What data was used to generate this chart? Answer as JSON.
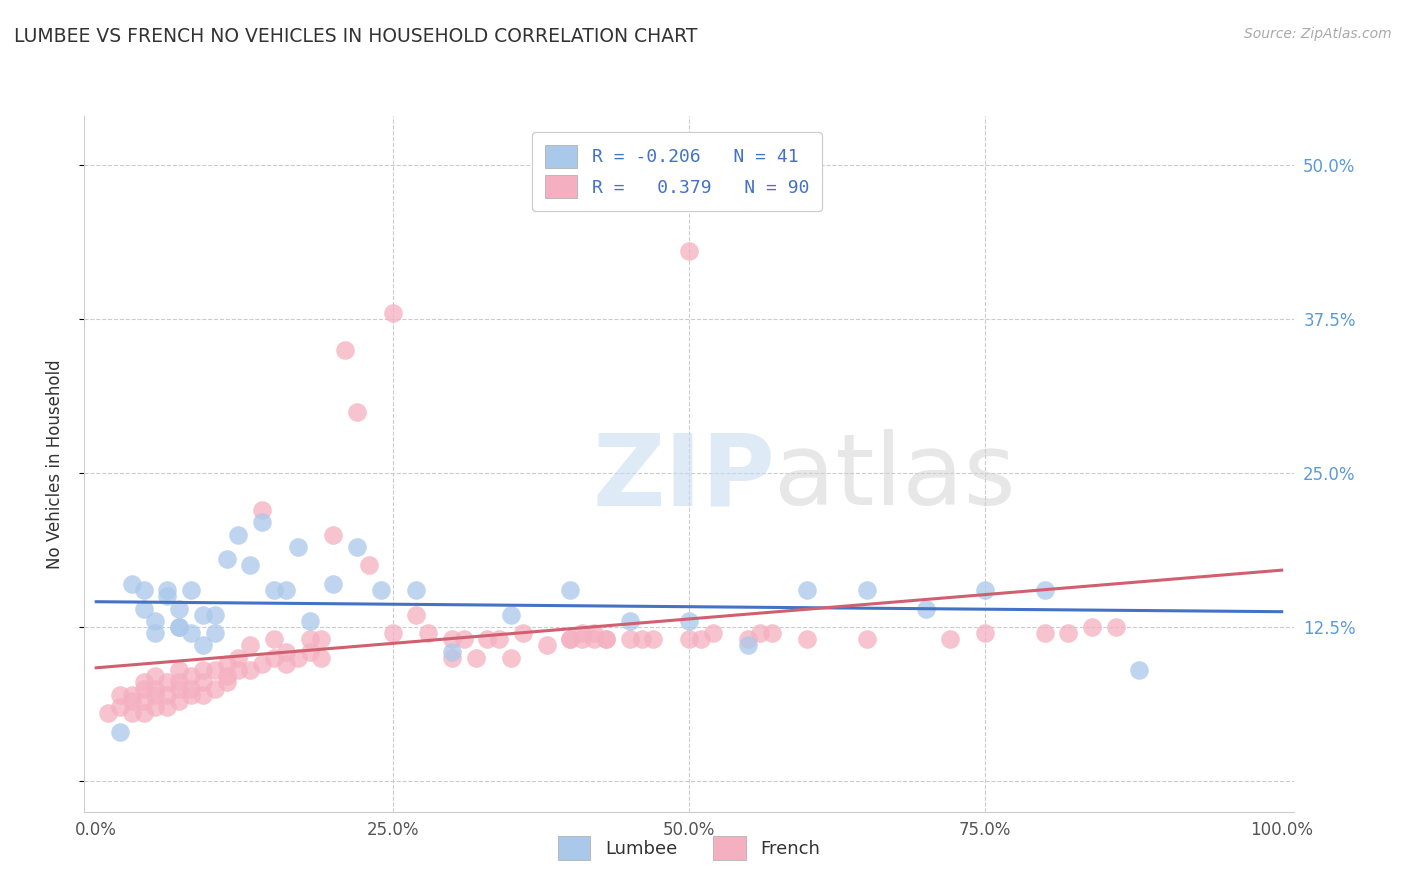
{
  "title": "LUMBEE VS FRENCH NO VEHICLES IN HOUSEHOLD CORRELATION CHART",
  "source": "Source: ZipAtlas.com",
  "ylabel": "No Vehicles in Household",
  "watermark_zip": "ZIP",
  "watermark_atlas": "atlas",
  "lumbee_R": -0.206,
  "lumbee_N": 41,
  "french_R": 0.379,
  "french_N": 90,
  "xlim": [
    -0.01,
    1.01
  ],
  "ylim": [
    -0.025,
    0.54
  ],
  "xticks": [
    0.0,
    0.25,
    0.5,
    0.75,
    1.0
  ],
  "yticks": [
    0.0,
    0.125,
    0.25,
    0.375,
    0.5
  ],
  "xticklabels": [
    "0.0%",
    "25.0%",
    "50.0%",
    "75.0%",
    "100.0%"
  ],
  "yticklabels_right": [
    "",
    "12.5%",
    "25.0%",
    "37.5%",
    "50.0%"
  ],
  "grid_color": "#cccccc",
  "lumbee_color": "#aac8ea",
  "french_color": "#f4afc0",
  "lumbee_line_color": "#4472c4",
  "french_line_color": "#d06070",
  "background": "#ffffff",
  "lumbee_x": [
    0.02,
    0.03,
    0.04,
    0.04,
    0.05,
    0.05,
    0.06,
    0.06,
    0.07,
    0.07,
    0.07,
    0.08,
    0.08,
    0.09,
    0.09,
    0.1,
    0.1,
    0.11,
    0.12,
    0.13,
    0.14,
    0.15,
    0.16,
    0.17,
    0.18,
    0.2,
    0.22,
    0.24,
    0.27,
    0.3,
    0.35,
    0.4,
    0.45,
    0.5,
    0.55,
    0.6,
    0.65,
    0.7,
    0.75,
    0.8,
    0.88
  ],
  "lumbee_y": [
    0.04,
    0.16,
    0.14,
    0.155,
    0.12,
    0.13,
    0.155,
    0.15,
    0.125,
    0.125,
    0.14,
    0.12,
    0.155,
    0.11,
    0.135,
    0.12,
    0.135,
    0.18,
    0.2,
    0.175,
    0.21,
    0.155,
    0.155,
    0.19,
    0.13,
    0.16,
    0.19,
    0.155,
    0.155,
    0.105,
    0.135,
    0.155,
    0.13,
    0.13,
    0.11,
    0.155,
    0.155,
    0.14,
    0.155,
    0.155,
    0.09
  ],
  "french_x": [
    0.01,
    0.02,
    0.02,
    0.03,
    0.03,
    0.03,
    0.04,
    0.04,
    0.04,
    0.04,
    0.05,
    0.05,
    0.05,
    0.05,
    0.06,
    0.06,
    0.06,
    0.07,
    0.07,
    0.07,
    0.07,
    0.08,
    0.08,
    0.08,
    0.09,
    0.09,
    0.09,
    0.1,
    0.1,
    0.11,
    0.11,
    0.11,
    0.12,
    0.12,
    0.13,
    0.13,
    0.14,
    0.14,
    0.15,
    0.15,
    0.16,
    0.16,
    0.17,
    0.18,
    0.18,
    0.19,
    0.19,
    0.2,
    0.21,
    0.22,
    0.23,
    0.25,
    0.25,
    0.27,
    0.28,
    0.3,
    0.3,
    0.31,
    0.32,
    0.33,
    0.34,
    0.35,
    0.36,
    0.38,
    0.4,
    0.41,
    0.42,
    0.43,
    0.45,
    0.46,
    0.47,
    0.5,
    0.5,
    0.51,
    0.52,
    0.55,
    0.56,
    0.57,
    0.6,
    0.65,
    0.72,
    0.75,
    0.8,
    0.82,
    0.84,
    0.86,
    0.4,
    0.41,
    0.42,
    0.43
  ],
  "french_y": [
    0.055,
    0.06,
    0.07,
    0.055,
    0.065,
    0.07,
    0.055,
    0.065,
    0.075,
    0.08,
    0.06,
    0.07,
    0.075,
    0.085,
    0.06,
    0.07,
    0.08,
    0.065,
    0.075,
    0.08,
    0.09,
    0.07,
    0.075,
    0.085,
    0.07,
    0.08,
    0.09,
    0.075,
    0.09,
    0.08,
    0.085,
    0.095,
    0.09,
    0.1,
    0.09,
    0.11,
    0.095,
    0.22,
    0.1,
    0.115,
    0.095,
    0.105,
    0.1,
    0.105,
    0.115,
    0.1,
    0.115,
    0.2,
    0.35,
    0.3,
    0.175,
    0.12,
    0.38,
    0.135,
    0.12,
    0.1,
    0.115,
    0.115,
    0.1,
    0.115,
    0.115,
    0.1,
    0.12,
    0.11,
    0.115,
    0.12,
    0.12,
    0.115,
    0.115,
    0.115,
    0.115,
    0.115,
    0.43,
    0.115,
    0.12,
    0.115,
    0.12,
    0.12,
    0.115,
    0.115,
    0.115,
    0.12,
    0.12,
    0.12,
    0.125,
    0.125,
    0.115,
    0.115,
    0.115,
    0.115
  ]
}
